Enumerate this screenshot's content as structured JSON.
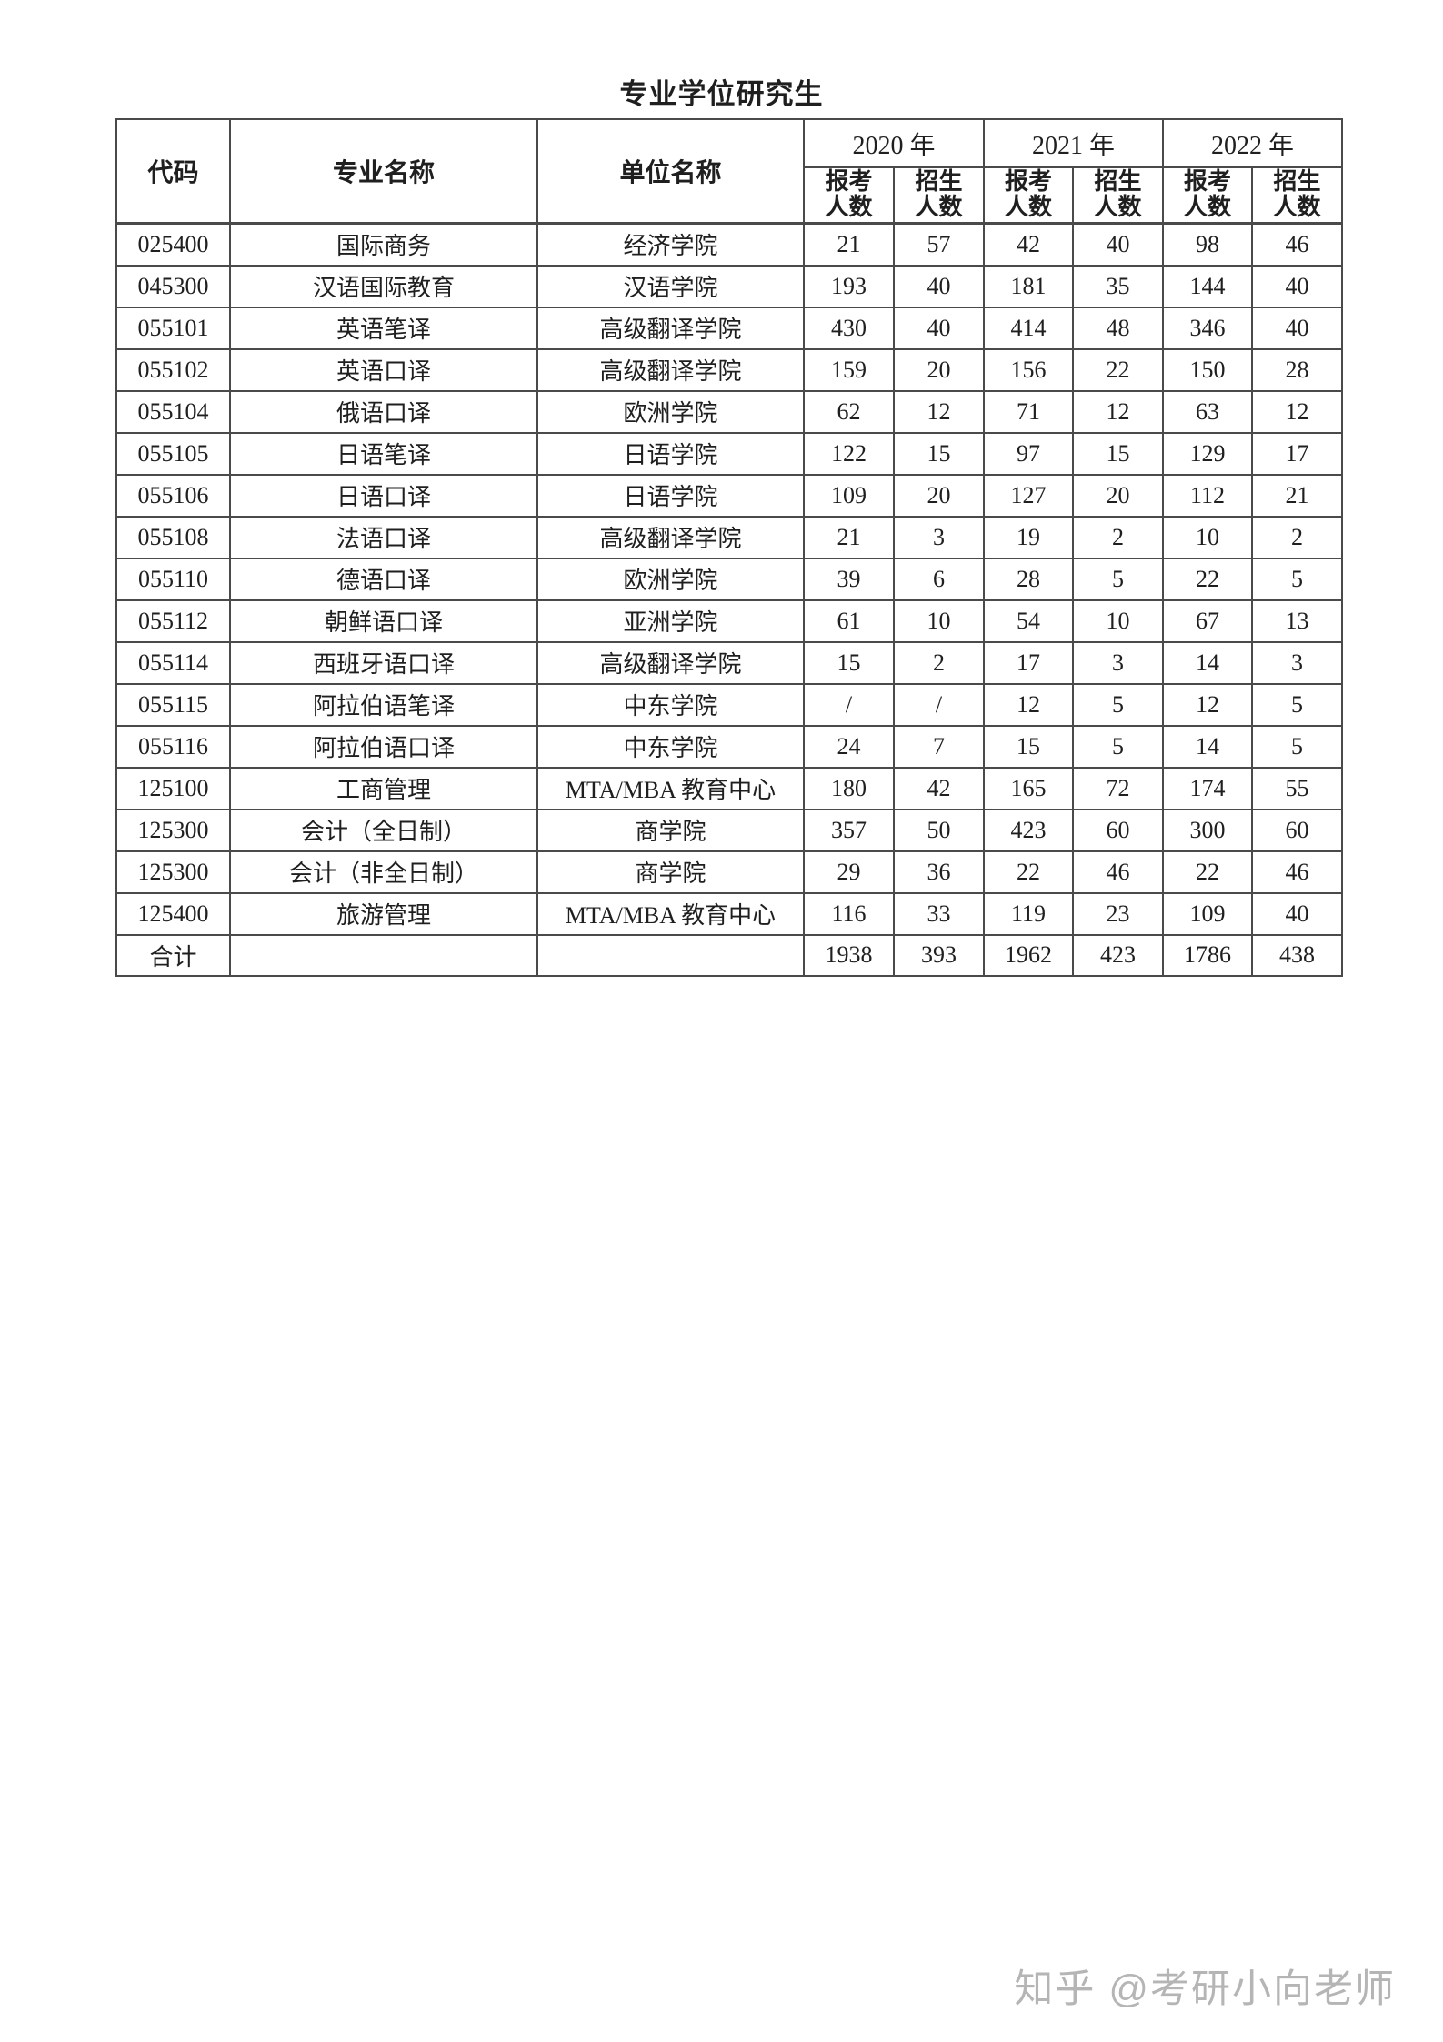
{
  "page": {
    "title": "专业学位研究生",
    "watermark": "知乎 @考研小向老师"
  },
  "table": {
    "col_headers": [
      "代码",
      "专业名称",
      "单位名称"
    ],
    "years": [
      "2020 年",
      "2021 年",
      "2022 年"
    ],
    "subcols": [
      {
        "l1": "报考",
        "l2": "人数"
      },
      {
        "l1": "招生",
        "l2": "人数"
      }
    ],
    "rows": [
      {
        "code": "025400",
        "major": "国际商务",
        "unit": "经济学院",
        "values": [
          "21",
          "57",
          "42",
          "40",
          "98",
          "46"
        ]
      },
      {
        "code": "045300",
        "major": "汉语国际教育",
        "unit": "汉语学院",
        "values": [
          "193",
          "40",
          "181",
          "35",
          "144",
          "40"
        ]
      },
      {
        "code": "055101",
        "major": "英语笔译",
        "unit": "高级翻译学院",
        "values": [
          "430",
          "40",
          "414",
          "48",
          "346",
          "40"
        ]
      },
      {
        "code": "055102",
        "major": "英语口译",
        "unit": "高级翻译学院",
        "values": [
          "159",
          "20",
          "156",
          "22",
          "150",
          "28"
        ]
      },
      {
        "code": "055104",
        "major": "俄语口译",
        "unit": "欧洲学院",
        "values": [
          "62",
          "12",
          "71",
          "12",
          "63",
          "12"
        ]
      },
      {
        "code": "055105",
        "major": "日语笔译",
        "unit": "日语学院",
        "values": [
          "122",
          "15",
          "97",
          "15",
          "129",
          "17"
        ]
      },
      {
        "code": "055106",
        "major": "日语口译",
        "unit": "日语学院",
        "values": [
          "109",
          "20",
          "127",
          "20",
          "112",
          "21"
        ]
      },
      {
        "code": "055108",
        "major": "法语口译",
        "unit": "高级翻译学院",
        "values": [
          "21",
          "3",
          "19",
          "2",
          "10",
          "2"
        ]
      },
      {
        "code": "055110",
        "major": "德语口译",
        "unit": "欧洲学院",
        "values": [
          "39",
          "6",
          "28",
          "5",
          "22",
          "5"
        ]
      },
      {
        "code": "055112",
        "major": "朝鲜语口译",
        "unit": "亚洲学院",
        "values": [
          "61",
          "10",
          "54",
          "10",
          "67",
          "13"
        ]
      },
      {
        "code": "055114",
        "major": "西班牙语口译",
        "unit": "高级翻译学院",
        "values": [
          "15",
          "2",
          "17",
          "3",
          "14",
          "3"
        ]
      },
      {
        "code": "055115",
        "major": "阿拉伯语笔译",
        "unit": "中东学院",
        "values": [
          "/",
          "/",
          "12",
          "5",
          "12",
          "5"
        ]
      },
      {
        "code": "055116",
        "major": "阿拉伯语口译",
        "unit": "中东学院",
        "values": [
          "24",
          "7",
          "15",
          "5",
          "14",
          "5"
        ]
      },
      {
        "code": "125100",
        "major": "工商管理",
        "unit": "MTA/MBA 教育中心",
        "values": [
          "180",
          "42",
          "165",
          "72",
          "174",
          "55"
        ]
      },
      {
        "code": "125300",
        "major": "会计（全日制）",
        "unit": "商学院",
        "values": [
          "357",
          "50",
          "423",
          "60",
          "300",
          "60"
        ]
      },
      {
        "code": "125300",
        "major": "会计（非全日制）",
        "unit": "商学院",
        "values": [
          "29",
          "36",
          "22",
          "46",
          "22",
          "46"
        ]
      },
      {
        "code": "125400",
        "major": "旅游管理",
        "unit": "MTA/MBA 教育中心",
        "values": [
          "116",
          "33",
          "119",
          "23",
          "109",
          "40"
        ]
      }
    ],
    "total_row": {
      "label": "合计",
      "values": [
        "1938",
        "393",
        "1962",
        "423",
        "1786",
        "438"
      ]
    }
  }
}
